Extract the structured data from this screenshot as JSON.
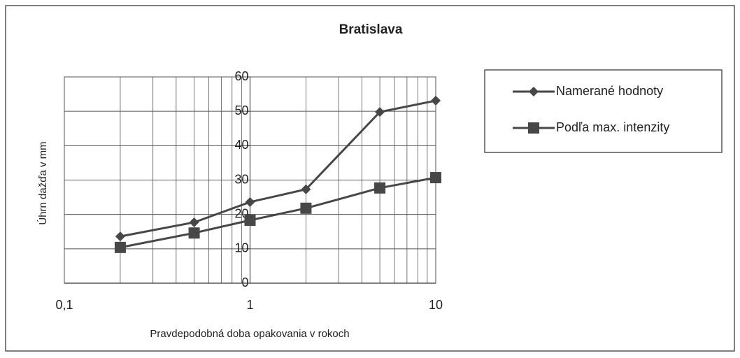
{
  "chart_data": {
    "type": "line",
    "title": "Bratislava",
    "xlabel": "Pravdepodobná doba opakovania v rokoch",
    "ylabel": "Úhrn dažďa v mm",
    "xlog": true,
    "grid": true,
    "legend": "right",
    "xlim": [
      0.1,
      10
    ],
    "xticks": [
      {
        "value": 0.1,
        "label": "0,1"
      },
      1,
      10
    ],
    "ylim": [
      0,
      60
    ],
    "yticks": [
      0,
      10,
      20,
      30,
      40,
      50,
      60
    ],
    "x": [
      0.2,
      0.5,
      1,
      2,
      5,
      10
    ],
    "series": [
      {
        "name": "Namerané hodnoty",
        "color": "#474747",
        "marker": "diamond",
        "values": [
          13.6,
          17.7,
          23.6,
          27.3,
          49.8,
          53.1
        ]
      },
      {
        "name": "Podľa max. intenzity",
        "color": "#474747",
        "marker": "square",
        "values": [
          10.4,
          14.6,
          18.3,
          21.8,
          27.7,
          30.7
        ]
      }
    ]
  }
}
